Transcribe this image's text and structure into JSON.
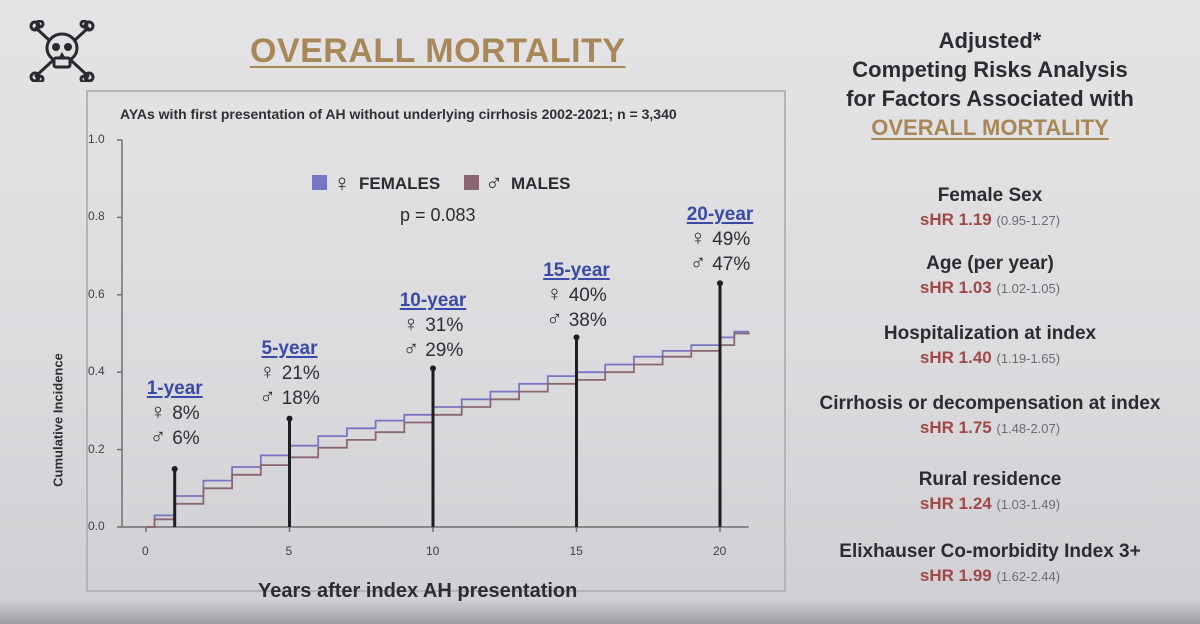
{
  "title": "OVERALL MORTALITY",
  "logo_icon": "skull-crossbones-icon",
  "colors": {
    "females": "#7a74c4",
    "males": "#8a6670",
    "gold": "#a88858",
    "hr": "#a04848",
    "annotation_title": "#3a4aa8"
  },
  "chart_data": {
    "type": "line",
    "subtitle": "AYAs with first presentation of AH without underlying cirrhosis 2002-2021; n = 3,340",
    "xlabel": "Years after index AH presentation",
    "ylabel": "Cumulative Incidence",
    "xlim": [
      0,
      21
    ],
    "ylim": [
      0,
      1.0
    ],
    "x_ticks": [
      0,
      5,
      10,
      15,
      20
    ],
    "y_ticks": [
      0.0,
      0.2,
      0.4,
      0.6,
      0.8,
      1.0
    ],
    "y_tick_labels": [
      "0.0",
      "0.2",
      "0.4",
      "0.6",
      "0.8",
      "1.0"
    ],
    "legend": [
      {
        "name": "FEMALES",
        "symbol": "♀",
        "color": "#7a74c4"
      },
      {
        "name": "MALES",
        "symbol": "♂",
        "color": "#8a6670"
      }
    ],
    "p_value": "p = 0.083",
    "series": [
      {
        "name": "FEMALES",
        "color": "#7a74c4",
        "x": [
          0,
          0.3,
          1,
          2,
          3,
          4,
          5,
          6,
          7,
          8,
          9,
          10,
          11,
          12,
          13,
          14,
          15,
          16,
          17,
          18,
          19,
          20,
          20.5,
          21
        ],
        "y": [
          0,
          0.03,
          0.08,
          0.12,
          0.155,
          0.185,
          0.21,
          0.235,
          0.255,
          0.275,
          0.29,
          0.31,
          0.33,
          0.35,
          0.37,
          0.39,
          0.4,
          0.42,
          0.44,
          0.455,
          0.47,
          0.49,
          0.505,
          0.505
        ]
      },
      {
        "name": "MALES",
        "color": "#8a6670",
        "x": [
          0,
          0.3,
          1,
          2,
          3,
          4,
          5,
          6,
          7,
          8,
          9,
          10,
          11,
          12,
          13,
          14,
          15,
          16,
          17,
          18,
          19,
          20,
          20.5,
          21
        ],
        "y": [
          0,
          0.02,
          0.06,
          0.1,
          0.135,
          0.16,
          0.18,
          0.205,
          0.225,
          0.245,
          0.27,
          0.29,
          0.31,
          0.33,
          0.35,
          0.37,
          0.38,
          0.4,
          0.42,
          0.44,
          0.455,
          0.47,
          0.5,
          0.505
        ]
      }
    ],
    "annotations": [
      {
        "label": "1-year",
        "x": 1,
        "female": "8%",
        "male": "6%",
        "marker_y": 0.15
      },
      {
        "label": "5-year",
        "x": 5,
        "female": "21%",
        "male": "18%",
        "marker_y": 0.28
      },
      {
        "label": "10-year",
        "x": 10,
        "female": "31%",
        "male": "29%",
        "marker_y": 0.41
      },
      {
        "label": "15-year",
        "x": 15,
        "female": "40%",
        "male": "38%",
        "marker_y": 0.49
      },
      {
        "label": "20-year",
        "x": 20,
        "female": "49%",
        "male": "47%",
        "marker_y": 0.63
      }
    ]
  },
  "right_panel": {
    "title_lines": [
      "Adjusted*",
      "Competing Risks Analysis",
      "for Factors Associated with"
    ],
    "highlight": "OVERALL MORTALITY",
    "factors": [
      {
        "name": "Female Sex",
        "hr": "sHR 1.19",
        "ci": "(0.95-1.27)"
      },
      {
        "name": "Age (per year)",
        "hr": "sHR 1.03",
        "ci": "(1.02-1.05)"
      },
      {
        "name": "Hospitalization at index",
        "hr": "sHR 1.40",
        "ci": "(1.19-1.65)"
      },
      {
        "name": "Cirrhosis or decompensation at index",
        "hr": "sHR 1.75",
        "ci": "(1.48-2.07)"
      },
      {
        "name": "Rural residence",
        "hr": "sHR 1.24",
        "ci": "(1.03-1.49)"
      },
      {
        "name": "Elixhauser Co-morbidity Index 3+",
        "hr": "sHR 1.99",
        "ci": "(1.62-2.44)"
      }
    ]
  }
}
